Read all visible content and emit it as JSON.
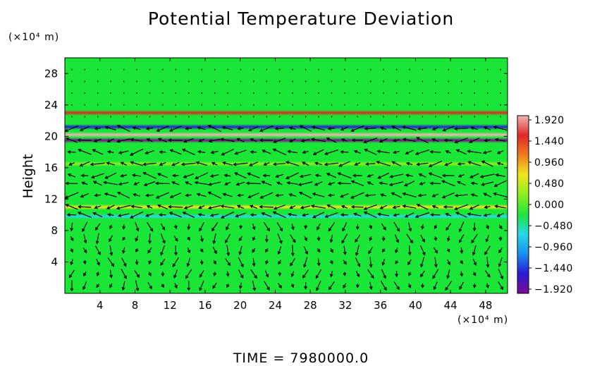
{
  "chart_data": {
    "type": "heatmap",
    "title": "Potential Temperature Deviation",
    "xlabel": "",
    "ylabel": "Height",
    "x_unit": "(×10⁴ m)",
    "y_unit": "(×10⁴ m)",
    "x_ticks": [
      4,
      8,
      12,
      16,
      20,
      24,
      28,
      32,
      36,
      40,
      44,
      48
    ],
    "y_ticks": [
      4,
      8,
      12,
      16,
      20,
      24,
      28
    ],
    "xlim": [
      0,
      50.5
    ],
    "ylim": [
      0,
      30
    ],
    "colorbar": {
      "ticks": [
        "1.920",
        "1.440",
        "0.960",
        "0.480",
        "0.000",
        "−0.480",
        "−0.960",
        "−1.440",
        "−1.920"
      ],
      "range": [
        -1.92,
        1.92
      ]
    },
    "bands": [
      {
        "y": 23.0,
        "value": 1.3
      },
      {
        "y": 21.2,
        "value": -1.6
      },
      {
        "y": 20.2,
        "value": 1.9
      },
      {
        "y": 19.5,
        "value": -1.9
      },
      {
        "y": 16.5,
        "value": 0.3
      },
      {
        "y": 11.0,
        "value": 0.5
      },
      {
        "y": 9.8,
        "value": -0.5
      }
    ],
    "overlay": "wind vectors",
    "footer": "TIME  =  7980000.0"
  },
  "colors": {
    "background_field": "#19e636",
    "colorbar_scale": [
      "#7f0a95",
      "#2a1ad8",
      "#1a8ff0",
      "#26d8e6",
      "#1ee63a",
      "#8cef1e",
      "#f0e61e",
      "#f07e1e",
      "#e02828",
      "#f2b4b4"
    ],
    "vectors": "#000000"
  }
}
